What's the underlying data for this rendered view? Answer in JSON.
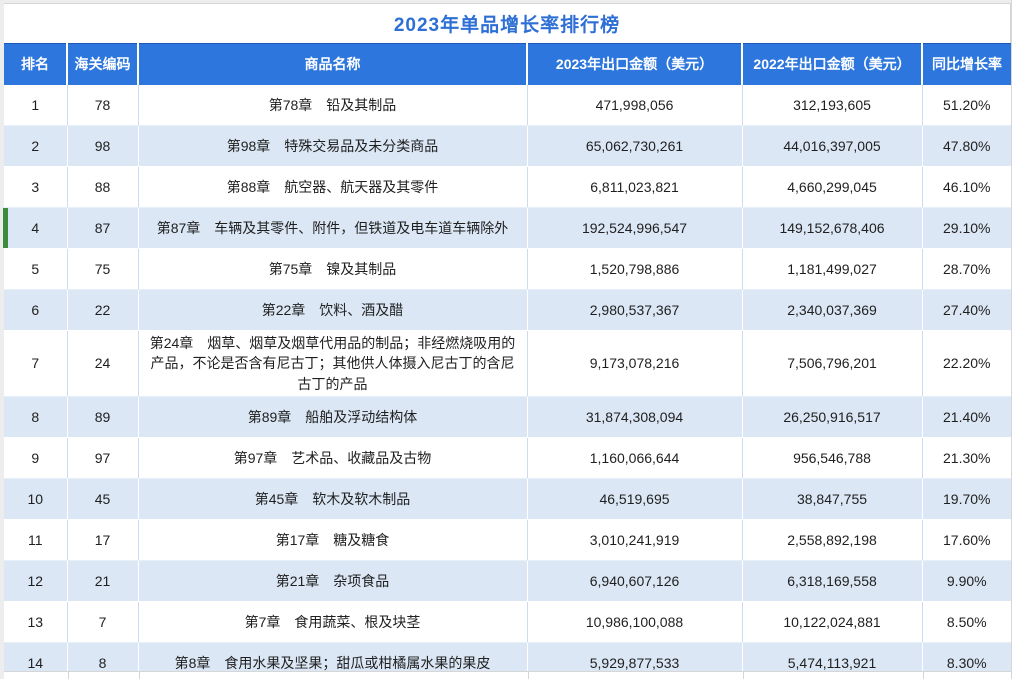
{
  "title": "2023年单品增长率排行榜",
  "colors": {
    "header_bg": "#2c76dd",
    "header_text": "#ffffff",
    "title_text": "#2e6fd6",
    "alt_row_bg": "#dbe7f5",
    "marker_green": "#3d8b3d",
    "body_text": "#1f1f1f"
  },
  "table": {
    "columns": [
      {
        "key": "rank",
        "label": "排名"
      },
      {
        "key": "hs_code",
        "label": "海关编码"
      },
      {
        "key": "name",
        "label": "商品名称"
      },
      {
        "key": "amount_2023",
        "label": "2023年出口金额（美元）"
      },
      {
        "key": "amount_2022",
        "label": "2022年出口金额（美元）"
      },
      {
        "key": "growth",
        "label": "同比增长率"
      }
    ],
    "rows": [
      {
        "rank": "1",
        "hs_code": "78",
        "name": "第78章　铅及其制品",
        "amount_2023": "471,998,056",
        "amount_2022": "312,193,605",
        "growth": "51.20%",
        "marked": false
      },
      {
        "rank": "2",
        "hs_code": "98",
        "name": "第98章　特殊交易品及未分类商品",
        "amount_2023": "65,062,730,261",
        "amount_2022": "44,016,397,005",
        "growth": "47.80%",
        "marked": false
      },
      {
        "rank": "3",
        "hs_code": "88",
        "name": "第88章　航空器、航天器及其零件",
        "amount_2023": "6,811,023,821",
        "amount_2022": "4,660,299,045",
        "growth": "46.10%",
        "marked": false
      },
      {
        "rank": "4",
        "hs_code": "87",
        "name": "第87章　车辆及其零件、附件，但铁道及电车道车辆除外",
        "amount_2023": "192,524,996,547",
        "amount_2022": "149,152,678,406",
        "growth": "29.10%",
        "marked": true
      },
      {
        "rank": "5",
        "hs_code": "75",
        "name": "第75章　镍及其制品",
        "amount_2023": "1,520,798,886",
        "amount_2022": "1,181,499,027",
        "growth": "28.70%",
        "marked": false
      },
      {
        "rank": "6",
        "hs_code": "22",
        "name": "第22章　饮料、酒及醋",
        "amount_2023": "2,980,537,367",
        "amount_2022": "2,340,037,369",
        "growth": "27.40%",
        "marked": false
      },
      {
        "rank": "7",
        "hs_code": "24",
        "name": "第24章　烟草、烟草及烟草代用品的制品；非经燃烧吸用的产品，不论是否含有尼古丁；其他供人体摄入尼古丁的含尼古丁的产品",
        "amount_2023": "9,173,078,216",
        "amount_2022": "7,506,796,201",
        "growth": "22.20%",
        "marked": false
      },
      {
        "rank": "8",
        "hs_code": "89",
        "name": "第89章　船舶及浮动结构体",
        "amount_2023": "31,874,308,094",
        "amount_2022": "26,250,916,517",
        "growth": "21.40%",
        "marked": false
      },
      {
        "rank": "9",
        "hs_code": "97",
        "name": "第97章　艺术品、收藏品及古物",
        "amount_2023": "1,160,066,644",
        "amount_2022": "956,546,788",
        "growth": "21.30%",
        "marked": false
      },
      {
        "rank": "10",
        "hs_code": "45",
        "name": "第45章　软木及软木制品",
        "amount_2023": "46,519,695",
        "amount_2022": "38,847,755",
        "growth": "19.70%",
        "marked": false
      },
      {
        "rank": "11",
        "hs_code": "17",
        "name": "第17章　糖及糖食",
        "amount_2023": "3,010,241,919",
        "amount_2022": "2,558,892,198",
        "growth": "17.60%",
        "marked": false
      },
      {
        "rank": "12",
        "hs_code": "21",
        "name": "第21章　杂项食品",
        "amount_2023": "6,940,607,126",
        "amount_2022": "6,318,169,558",
        "growth": "9.90%",
        "marked": false
      },
      {
        "rank": "13",
        "hs_code": "7",
        "name": "第7章　食用蔬菜、根及块茎",
        "amount_2023": "10,986,100,088",
        "amount_2022": "10,122,024,881",
        "growth": "8.50%",
        "marked": false
      },
      {
        "rank": "14",
        "hs_code": "8",
        "name": "第8章　食用水果及坚果；甜瓜或柑橘属水果的果皮",
        "amount_2023": "5,929,877,533",
        "amount_2022": "5,474,113,921",
        "growth": "8.30%",
        "marked": false
      }
    ]
  },
  "chrome": {
    "column_tick_positions": [
      64,
      135,
      524,
      739,
      919
    ]
  }
}
